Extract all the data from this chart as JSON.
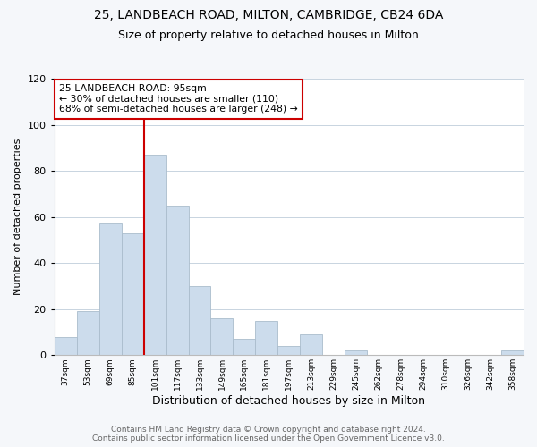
{
  "title": "25, LANDBEACH ROAD, MILTON, CAMBRIDGE, CB24 6DA",
  "subtitle": "Size of property relative to detached houses in Milton",
  "xlabel": "Distribution of detached houses by size in Milton",
  "ylabel": "Number of detached properties",
  "bar_labels": [
    "37sqm",
    "53sqm",
    "69sqm",
    "85sqm",
    "101sqm",
    "117sqm",
    "133sqm",
    "149sqm",
    "165sqm",
    "181sqm",
    "197sqm",
    "213sqm",
    "229sqm",
    "245sqm",
    "262sqm",
    "278sqm",
    "294sqm",
    "310sqm",
    "326sqm",
    "342sqm",
    "358sqm"
  ],
  "bar_values": [
    8,
    19,
    57,
    53,
    87,
    65,
    30,
    16,
    7,
    15,
    4,
    9,
    0,
    2,
    0,
    0,
    0,
    0,
    0,
    0,
    2
  ],
  "bar_color": "#ccdcec",
  "bar_edge_color": "#aabccc",
  "ylim": [
    0,
    120
  ],
  "yticks": [
    0,
    20,
    40,
    60,
    80,
    100,
    120
  ],
  "vline_x_index": 4,
  "vline_color": "#cc0000",
  "annotation_text": "25 LANDBEACH ROAD: 95sqm\n← 30% of detached houses are smaller (110)\n68% of semi-detached houses are larger (248) →",
  "annotation_box_color": "#ffffff",
  "annotation_box_edge": "#cc0000",
  "footer_line1": "Contains HM Land Registry data © Crown copyright and database right 2024.",
  "footer_line2": "Contains public sector information licensed under the Open Government Licence v3.0.",
  "bg_color": "#f5f7fa",
  "plot_bg_color": "#ffffff",
  "title_fontsize": 10,
  "subtitle_fontsize": 9,
  "footer_fontsize": 6.5,
  "ylabel_fontsize": 8,
  "xlabel_fontsize": 9
}
